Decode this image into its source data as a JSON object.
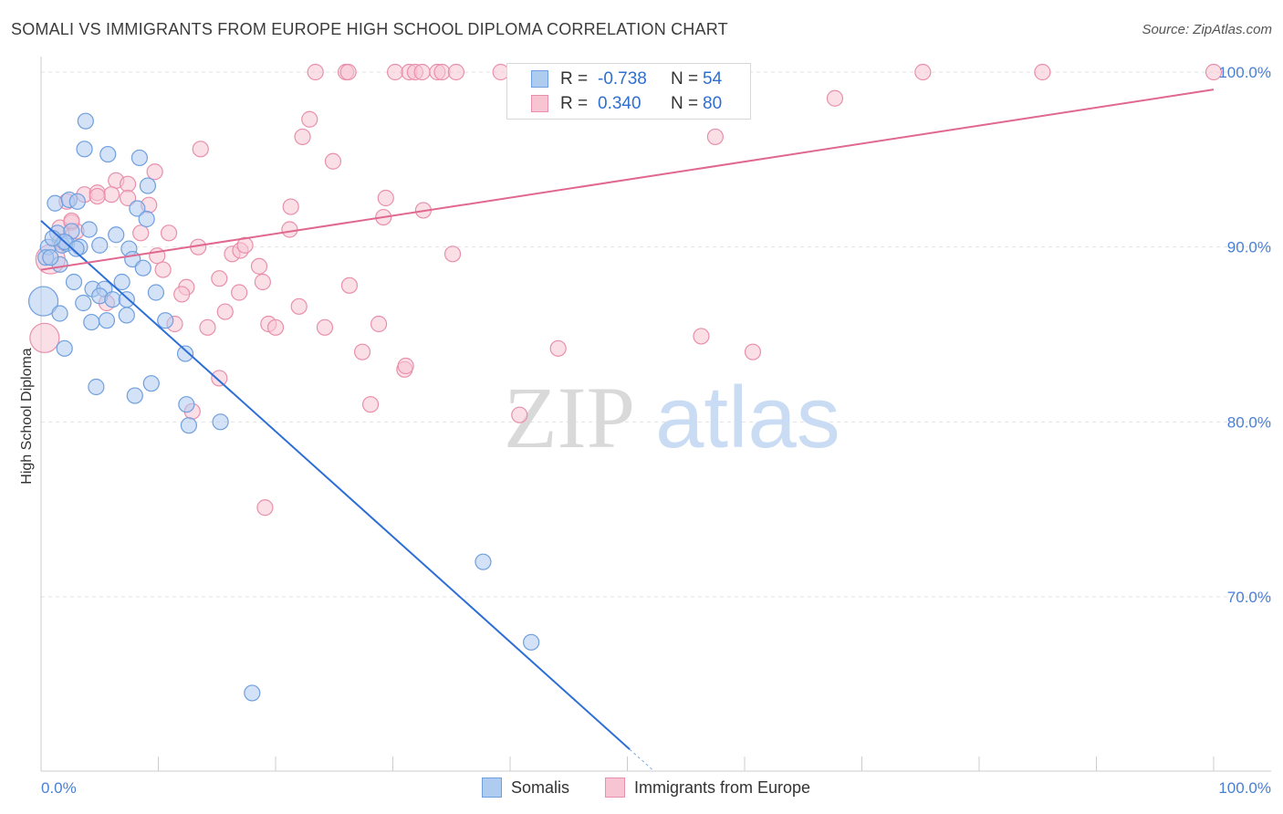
{
  "title": "SOMALI VS IMMIGRANTS FROM EUROPE HIGH SCHOOL DIPLOMA CORRELATION CHART",
  "source": "Source: ZipAtlas.com",
  "watermark": {
    "zip": "ZIP",
    "atlas": "atlas"
  },
  "legend": {
    "somali": {
      "r_label": "R =",
      "r_value": "-0.738",
      "n_label": "N =",
      "n_value": "54"
    },
    "europe": {
      "r_label": "R =",
      "r_value": "0.340",
      "n_label": "N =",
      "n_value": "80"
    }
  },
  "bottom_legend": {
    "somali": "Somalis",
    "europe": "Immigrants from Europe"
  },
  "chart_data": {
    "type": "scatter",
    "title": "SOMALI VS IMMIGRANTS FROM EUROPE HIGH SCHOOL DIPLOMA CORRELATION CHART",
    "xlabel": "",
    "ylabel": "High School Diploma",
    "xlim": [
      0,
      100
    ],
    "ylim": [
      60.5,
      101.5
    ],
    "x_tick_labels": [
      "0.0%",
      "100.0%"
    ],
    "y_ticks": [
      70,
      80,
      90,
      100
    ],
    "y_tick_labels": [
      "70.0%",
      "80.0%",
      "90.0%",
      "100.0%"
    ],
    "colors": {
      "somali_fill": "#aecbf0",
      "somali_stroke": "#6f9fde",
      "somali_line": "#2d6fd6",
      "europe_fill": "#f7c4d4",
      "europe_stroke": "#e88fab",
      "europe_line": "#e0688f",
      "grid": "#e3e3e3",
      "axis": "#cccccc"
    },
    "series": [
      {
        "name": "Somalis",
        "points": [
          [
            3.8,
            97.2
          ],
          [
            3.7,
            95.6
          ],
          [
            5.7,
            95.3
          ],
          [
            8.4,
            95.1
          ],
          [
            1.2,
            92.5
          ],
          [
            2.4,
            92.7
          ],
          [
            3.1,
            92.6
          ],
          [
            9.1,
            93.5
          ],
          [
            8.2,
            92.2
          ],
          [
            9.0,
            91.6
          ],
          [
            1.4,
            90.8
          ],
          [
            2.6,
            90.9
          ],
          [
            4.1,
            91.0
          ],
          [
            6.4,
            90.7
          ],
          [
            0.6,
            90.0
          ],
          [
            1.8,
            90.1
          ],
          [
            2.2,
            90.2
          ],
          [
            3.3,
            90.0
          ],
          [
            5.0,
            90.1
          ],
          [
            7.5,
            89.9
          ],
          [
            0.4,
            89.4
          ],
          [
            1.6,
            89.0
          ],
          [
            7.8,
            89.3
          ],
          [
            8.7,
            88.8
          ],
          [
            2.8,
            88.0
          ],
          [
            6.9,
            88.0
          ],
          [
            4.4,
            87.6
          ],
          [
            5.4,
            87.6
          ],
          [
            9.8,
            87.4
          ],
          [
            0.2,
            86.9
          ],
          [
            5.0,
            87.2
          ],
          [
            6.1,
            87.0
          ],
          [
            7.3,
            87.0
          ],
          [
            3.6,
            86.8
          ],
          [
            1.6,
            86.2
          ],
          [
            7.3,
            86.1
          ],
          [
            4.3,
            85.7
          ],
          [
            5.6,
            85.8
          ],
          [
            10.6,
            85.8
          ],
          [
            12.3,
            83.9
          ],
          [
            2.0,
            84.2
          ],
          [
            9.4,
            82.2
          ],
          [
            4.7,
            82.0
          ],
          [
            8.0,
            81.5
          ],
          [
            12.4,
            81.0
          ],
          [
            12.6,
            79.8
          ],
          [
            15.3,
            80.0
          ],
          [
            37.7,
            72.0
          ],
          [
            41.8,
            67.4
          ],
          [
            18.0,
            64.5
          ],
          [
            0.8,
            89.4
          ],
          [
            2.0,
            90.3
          ],
          [
            3.0,
            89.9
          ],
          [
            1.0,
            90.5
          ]
        ],
        "trend": {
          "x_start": 0,
          "y_start": 91.5,
          "x_end": 50,
          "y_end": 61.4
        }
      },
      {
        "name": "Immigrants from Europe",
        "points": [
          [
            23.4,
            100
          ],
          [
            26.0,
            100
          ],
          [
            26.2,
            100
          ],
          [
            30.2,
            100
          ],
          [
            31.4,
            100
          ],
          [
            31.9,
            100
          ],
          [
            32.5,
            100
          ],
          [
            33.8,
            100
          ],
          [
            34.2,
            100
          ],
          [
            35.4,
            100
          ],
          [
            39.2,
            100
          ],
          [
            47.4,
            100
          ],
          [
            53.5,
            100
          ],
          [
            75.2,
            100
          ],
          [
            85.4,
            100
          ],
          [
            100.0,
            100
          ],
          [
            67.7,
            98.5
          ],
          [
            22.9,
            97.3
          ],
          [
            22.3,
            96.3
          ],
          [
            57.5,
            96.3
          ],
          [
            13.6,
            95.6
          ],
          [
            24.9,
            94.9
          ],
          [
            6.4,
            93.8
          ],
          [
            7.4,
            93.6
          ],
          [
            3.7,
            93.0
          ],
          [
            4.8,
            93.1
          ],
          [
            6.0,
            93.0
          ],
          [
            9.2,
            92.4
          ],
          [
            2.2,
            92.6
          ],
          [
            7.4,
            92.8
          ],
          [
            29.4,
            92.8
          ],
          [
            21.3,
            92.3
          ],
          [
            32.6,
            92.1
          ],
          [
            29.2,
            91.7
          ],
          [
            2.6,
            91.4
          ],
          [
            1.6,
            91.1
          ],
          [
            3.0,
            90.9
          ],
          [
            8.5,
            90.8
          ],
          [
            10.9,
            90.8
          ],
          [
            21.2,
            91.0
          ],
          [
            1.6,
            90.3
          ],
          [
            13.4,
            90.0
          ],
          [
            16.3,
            89.6
          ],
          [
            17.0,
            89.8
          ],
          [
            17.4,
            90.1
          ],
          [
            35.1,
            89.6
          ],
          [
            9.9,
            89.5
          ],
          [
            0.8,
            89.3
          ],
          [
            10.4,
            88.7
          ],
          [
            18.6,
            88.9
          ],
          [
            15.2,
            88.2
          ],
          [
            12.4,
            87.7
          ],
          [
            18.9,
            88.0
          ],
          [
            26.3,
            87.8
          ],
          [
            16.9,
            87.4
          ],
          [
            12.0,
            87.3
          ],
          [
            22.0,
            86.6
          ],
          [
            15.7,
            86.3
          ],
          [
            5.6,
            86.8
          ],
          [
            19.4,
            85.6
          ],
          [
            11.4,
            85.6
          ],
          [
            14.2,
            85.4
          ],
          [
            20.0,
            85.4
          ],
          [
            24.2,
            85.4
          ],
          [
            28.8,
            85.6
          ],
          [
            0.3,
            84.8
          ],
          [
            27.4,
            84.0
          ],
          [
            44.1,
            84.2
          ],
          [
            56.3,
            84.9
          ],
          [
            60.7,
            84.0
          ],
          [
            31.0,
            83.0
          ],
          [
            31.1,
            83.2
          ],
          [
            15.2,
            82.5
          ],
          [
            28.1,
            81.0
          ],
          [
            12.9,
            80.6
          ],
          [
            40.8,
            80.4
          ],
          [
            19.1,
            75.1
          ],
          [
            2.6,
            91.5
          ],
          [
            4.8,
            92.9
          ],
          [
            9.7,
            94.3
          ]
        ],
        "trend": {
          "x_start": 0,
          "y_start": 88.7,
          "x_end": 100,
          "y_end": 99.0
        }
      }
    ]
  }
}
